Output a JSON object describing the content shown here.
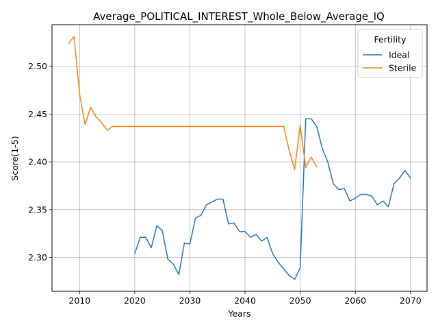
{
  "chart_data": {
    "type": "line",
    "title": "Average_POLITICAL_INTEREST_Whole_Below_Average_IQ",
    "xlabel": "Years",
    "ylabel": "Score(1-5)",
    "xlim": [
      2005,
      2073
    ],
    "ylim": [
      2.2645,
      2.5435
    ],
    "x_ticks": [
      2010,
      2020,
      2030,
      2040,
      2050,
      2060,
      2070
    ],
    "y_ticks": [
      2.3,
      2.35,
      2.4,
      2.45,
      2.5
    ],
    "x_tick_labels": [
      "2010",
      "2020",
      "2030",
      "2040",
      "2050",
      "2060",
      "2070"
    ],
    "y_tick_labels": [
      "2.30",
      "2.35",
      "2.40",
      "2.45",
      "2.50"
    ],
    "grid": true,
    "legend": {
      "title": "Fertility",
      "position": "top-right"
    },
    "series": [
      {
        "name": "Ideal",
        "color": "#1f77b4",
        "x": [
          2020,
          2021,
          2022,
          2023,
          2024,
          2025,
          2026,
          2027,
          2028,
          2029,
          2030,
          2031,
          2032,
          2033,
          2034,
          2035,
          2036,
          2037,
          2038,
          2039,
          2040,
          2041,
          2042,
          2043,
          2044,
          2045,
          2046,
          2047,
          2048,
          2049,
          2050,
          2051,
          2052,
          2053,
          2054,
          2055,
          2056,
          2057,
          2058,
          2059,
          2060,
          2061,
          2062,
          2063,
          2064,
          2065,
          2066,
          2067,
          2068,
          2069,
          2070
        ],
        "y": [
          2.304,
          2.321,
          2.321,
          2.31,
          2.333,
          2.328,
          2.298,
          2.293,
          2.282,
          2.315,
          2.314,
          2.341,
          2.344,
          2.355,
          2.358,
          2.361,
          2.361,
          2.335,
          2.336,
          2.327,
          2.327,
          2.321,
          2.324,
          2.317,
          2.321,
          2.304,
          2.295,
          2.288,
          2.281,
          2.277,
          2.289,
          2.445,
          2.445,
          2.437,
          2.414,
          2.4,
          2.377,
          2.371,
          2.372,
          2.359,
          2.362,
          2.366,
          2.366,
          2.364,
          2.355,
          2.359,
          2.353,
          2.377,
          2.383,
          2.391,
          2.383
        ]
      },
      {
        "name": "Sterile",
        "color": "#ff7f0e",
        "x": [
          2008,
          2009,
          2010,
          2011,
          2012,
          2013,
          2014,
          2015,
          2016,
          2017,
          2018,
          2019,
          2020,
          2021,
          2022,
          2023,
          2024,
          2025,
          2026,
          2027,
          2028,
          2029,
          2030,
          2031,
          2032,
          2033,
          2034,
          2035,
          2036,
          2037,
          2038,
          2039,
          2040,
          2041,
          2042,
          2043,
          2044,
          2045,
          2046,
          2047,
          2048,
          2049,
          2050,
          2051,
          2052,
          2053
        ],
        "y": [
          2.524,
          2.531,
          2.471,
          2.439,
          2.457,
          2.447,
          2.441,
          2.433,
          2.437,
          2.437,
          2.437,
          2.437,
          2.437,
          2.437,
          2.437,
          2.437,
          2.437,
          2.437,
          2.437,
          2.437,
          2.437,
          2.437,
          2.437,
          2.437,
          2.437,
          2.437,
          2.437,
          2.437,
          2.437,
          2.437,
          2.437,
          2.437,
          2.437,
          2.437,
          2.437,
          2.437,
          2.437,
          2.437,
          2.437,
          2.437,
          2.412,
          2.392,
          2.438,
          2.394,
          2.405,
          2.395
        ]
      }
    ]
  }
}
